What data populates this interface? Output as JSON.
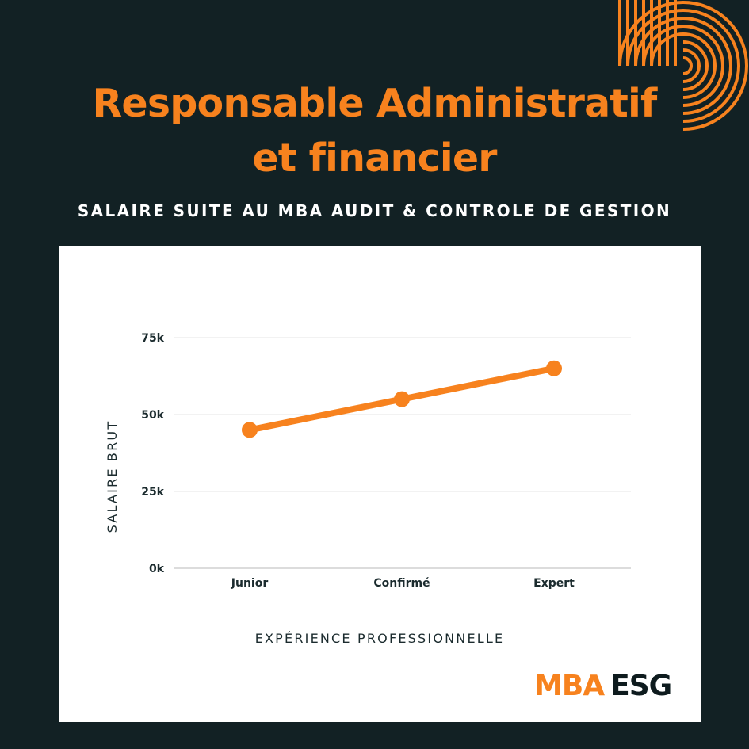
{
  "header": {
    "title_line1": "Responsable Administratif",
    "title_line2": "et financier",
    "subtitle": "SALAIRE SUITE AU MBA AUDIT & CONTROLE DE GESTION"
  },
  "logo": {
    "part1": "MBA",
    "part2": "ESG"
  },
  "colors": {
    "background": "#122124",
    "accent": "#f7821e",
    "card": "#ffffff",
    "text_dark": "#1b2b2e",
    "gridline": "#e4e4e4"
  },
  "chart_data": {
    "type": "line",
    "categories": [
      "Junior",
      "Confirmé",
      "Expert"
    ],
    "series": [
      {
        "values": [
          45000,
          55000,
          65000
        ]
      }
    ],
    "ylim": [
      0,
      75000
    ],
    "yticks": [
      0,
      25000,
      50000,
      75000
    ],
    "ytick_labels": [
      "0k",
      "25k",
      "50k",
      "75k"
    ],
    "xlabel": "EXPÉRIENCE PROFESSIONNELLE",
    "ylabel": "SALAIRE BRUT",
    "grid": true,
    "legend": "none",
    "line_color": "#f7821e"
  }
}
